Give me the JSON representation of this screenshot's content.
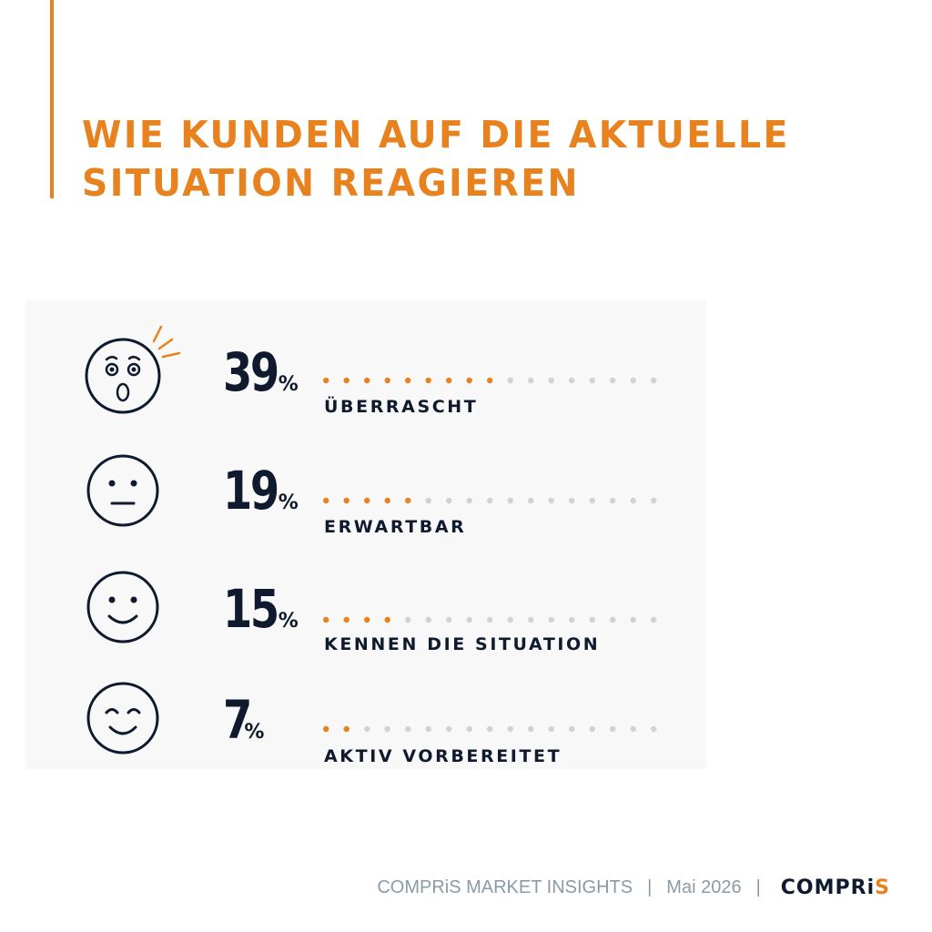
{
  "header": {
    "title_line1": "WIE KUNDEN AUF DIE AKTUELLE",
    "title_line2": "SITUATION REAGIEREN"
  },
  "colors": {
    "accent": "#e8821e",
    "text": "#0f1a2e",
    "dot_inactive": "#cfd3d6",
    "footer": "#8a9aa6"
  },
  "percent_symbol": "%",
  "chart_data": {
    "type": "bar",
    "categories": [
      "ÜBERRASCHT",
      "ERWARTBAR",
      "KENNEN DIE SITUATION",
      "AKTIV VORBEREITET"
    ],
    "values": [
      39,
      19,
      15,
      7
    ],
    "value_labels": [
      "39",
      "19",
      "15",
      "7"
    ],
    "unit": "%",
    "icons": [
      "surprised-face-icon",
      "neutral-face-icon",
      "smiling-face-icon",
      "content-face-icon"
    ],
    "dots_total": 17,
    "dots_filled": [
      9,
      5,
      4,
      2
    ]
  },
  "footer": {
    "publication": "COMPRiS MARKET INSIGHTS",
    "separator": "|",
    "date": "Mai 2026",
    "logo_main": "COMPRi",
    "logo_accent": "S"
  }
}
